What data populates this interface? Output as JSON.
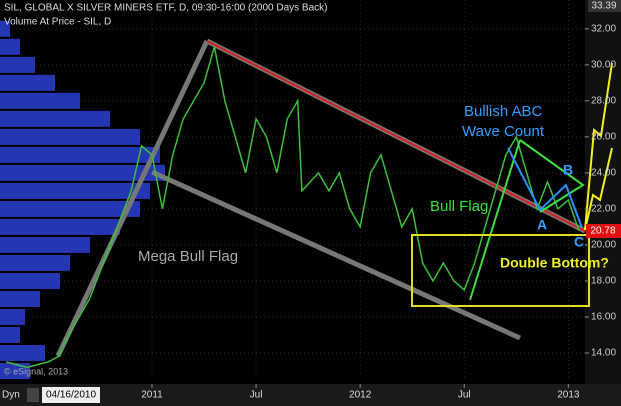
{
  "chart_data": {
    "type": "line",
    "title": "SIL, GLOBAL X SILVER MINERS ETF, D, 09:30-16:00 (2000 Days Back)",
    "subtitle": "Volume At Price - SIL, D",
    "credit": "© eSignal, 2013",
    "toolbar_label": "Dyn",
    "start_date": "04/16/2010",
    "last_price": "20.78",
    "top_price": "33.39",
    "annotations": [
      "Mega Bull Flag",
      "Bull Flag",
      "Bullish ABC Wave Count",
      "Double Bottom?",
      "A",
      "B",
      "C"
    ],
    "x": [
      2010.3,
      2010.4,
      2010.5,
      2010.55,
      2010.6,
      2010.7,
      2010.8,
      2010.9,
      2010.95,
      2011.0,
      2011.05,
      2011.1,
      2011.15,
      2011.25,
      2011.3,
      2011.35,
      2011.4,
      2011.45,
      2011.5,
      2011.55,
      2011.6,
      2011.65,
      2011.7,
      2011.72,
      2011.8,
      2011.85,
      2011.9,
      2011.95,
      2012.0,
      2012.05,
      2012.1,
      2012.15,
      2012.2,
      2012.25,
      2012.3,
      2012.35,
      2012.4,
      2012.45,
      2012.5,
      2012.55,
      2012.6,
      2012.65,
      2012.7,
      2012.75,
      2012.8,
      2012.85,
      2012.9,
      2012.95,
      2013.0,
      2013.05
    ],
    "series": [
      {
        "name": "SIL",
        "color": "#3cbf3c",
        "values": [
          13.5,
          13.2,
          13.5,
          13.8,
          15,
          17,
          20,
          23,
          25.5,
          25,
          22,
          25,
          27,
          29,
          31,
          28,
          26,
          24,
          27,
          26,
          24,
          27,
          28,
          23,
          24,
          23,
          24,
          22,
          21,
          24,
          25,
          23,
          21,
          22,
          19,
          18,
          19,
          18,
          17.5,
          19,
          21,
          23,
          25,
          26,
          24,
          22,
          23.5,
          22,
          22.5,
          20.8
        ]
      }
    ],
    "volume_profile": {
      "prices": [
        13,
        14,
        15,
        16,
        17,
        18,
        19,
        20,
        21,
        22,
        23,
        24,
        25,
        26,
        27,
        28,
        29,
        30,
        31,
        32
      ],
      "values": [
        30,
        45,
        20,
        25,
        40,
        60,
        70,
        90,
        120,
        140,
        150,
        165,
        160,
        140,
        110,
        80,
        55,
        35,
        20,
        10
      ],
      "xlim": [
        0,
        585
      ],
      "color": "#2a3fd0"
    },
    "xlim": [
      2010.27,
      2013.08
    ],
    "xticks": [
      {
        "value": 2011,
        "label": "2011"
      },
      {
        "value": 2011.5,
        "label": "Jul"
      },
      {
        "value": 2012,
        "label": "2012"
      },
      {
        "value": 2012.5,
        "label": "Jul"
      },
      {
        "value": 2013,
        "label": "2013"
      }
    ],
    "ylim": [
      12.5,
      33.6
    ],
    "yticks": [
      {
        "value": 14,
        "label": "14.00"
      },
      {
        "value": 16,
        "label": "16.00"
      },
      {
        "value": 18,
        "label": "18.00"
      },
      {
        "value": 20,
        "label": "20.00"
      },
      {
        "value": 22,
        "label": "22.00"
      },
      {
        "value": 24,
        "label": "24.00"
      },
      {
        "value": 26,
        "label": "26.00"
      },
      {
        "value": 28,
        "label": "28.00"
      },
      {
        "value": 30,
        "label": "30.00"
      },
      {
        "value": 32,
        "label": "32.00"
      }
    ],
    "grid": true
  }
}
